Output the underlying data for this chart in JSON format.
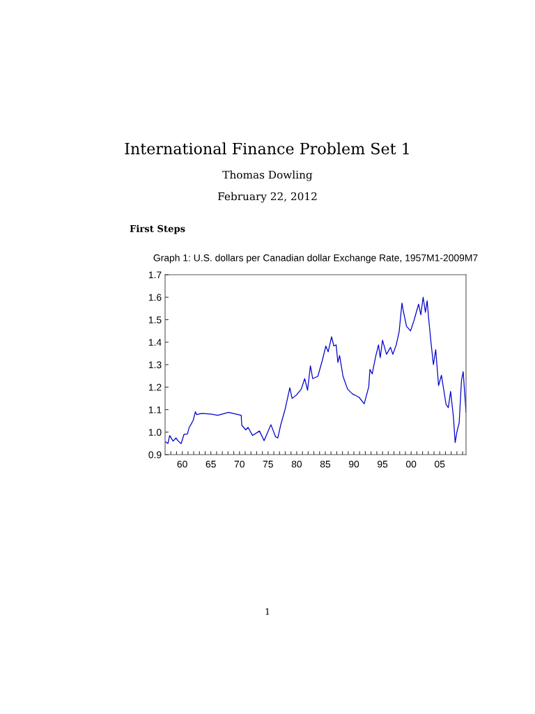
{
  "chart_data": {
    "type": "line",
    "title": "Graph 1: U.S. dollars per Canadian dollar Exchange Rate, 1957M1-2009M7",
    "annotations": [
      "International Finance Problem Set 1",
      "Thomas Dowling",
      "February 22, 2012",
      "First Steps",
      "1"
    ],
    "x": [
      1957.0,
      1957.5,
      1957.8,
      1958.4,
      1958.9,
      1959.3,
      1959.8,
      1960.3,
      1960.9,
      1961.2,
      1961.5,
      1961.9,
      1962.3,
      1962.5,
      1963.4,
      1965.0,
      1966.2,
      1968.1,
      1970.3,
      1970.4,
      1971.1,
      1971.5,
      1972.3,
      1973.5,
      1974.3,
      1975.5,
      1976.3,
      1976.7,
      1977.2,
      1978.0,
      1978.8,
      1979.2,
      1980.0,
      1980.8,
      1981.4,
      1981.9,
      1982.4,
      1982.8,
      1983.7,
      1984.5,
      1985.1,
      1985.5,
      1986.1,
      1986.5,
      1986.9,
      1987.2,
      1987.5,
      1988.1,
      1988.9,
      1989.7,
      1990.9,
      1991.8,
      1992.6,
      1992.8,
      1993.2,
      1993.8,
      1994.3,
      1994.6,
      1995.0,
      1995.7,
      1996.4,
      1996.8,
      1997.4,
      1997.9,
      1998.4,
      1998.6,
      1999.2,
      1999.9,
      2000.5,
      2001.3,
      2001.7,
      2002.1,
      2002.5,
      2002.8,
      2003.1,
      2003.5,
      2003.9,
      2004.3,
      2004.8,
      2005.3,
      2006.1,
      2006.5,
      2006.9,
      2007.4,
      2007.7,
      2008.0,
      2008.4,
      2008.8,
      2009.1,
      2009.4,
      2009.6
    ],
    "series": [
      {
        "color": "#0000cc",
        "values": [
          0.957,
          0.95,
          0.985,
          0.96,
          0.974,
          0.96,
          0.949,
          0.99,
          0.992,
          1.02,
          1.033,
          1.052,
          1.091,
          1.078,
          1.083,
          1.08,
          1.075,
          1.088,
          1.075,
          1.031,
          1.01,
          1.021,
          0.985,
          1.005,
          0.962,
          1.033,
          0.98,
          0.974,
          1.031,
          1.104,
          1.197,
          1.15,
          1.166,
          1.191,
          1.238,
          1.186,
          1.295,
          1.238,
          1.248,
          1.321,
          1.383,
          1.357,
          1.424,
          1.383,
          1.388,
          1.31,
          1.341,
          1.248,
          1.191,
          1.171,
          1.155,
          1.126,
          1.202,
          1.279,
          1.259,
          1.336,
          1.388,
          1.331,
          1.409,
          1.346,
          1.377,
          1.346,
          1.388,
          1.445,
          1.574,
          1.543,
          1.471,
          1.45,
          1.496,
          1.569,
          1.522,
          1.6,
          1.533,
          1.584,
          1.496,
          1.393,
          1.3,
          1.367,
          1.207,
          1.253,
          1.124,
          1.109,
          1.181,
          1.067,
          0.954,
          1.0,
          1.042,
          1.228,
          1.269,
          1.16,
          1.088
        ]
      }
    ],
    "xlim": [
      1957.0,
      2009.6
    ],
    "xticks": [
      {
        "value": 1958,
        "label": null
      },
      {
        "value": 1959,
        "label": null
      },
      {
        "value": 1960,
        "label": "60"
      },
      {
        "value": 1961,
        "label": null
      },
      {
        "value": 1962,
        "label": null
      },
      {
        "value": 1963,
        "label": null
      },
      {
        "value": 1964,
        "label": null
      },
      {
        "value": 1965,
        "label": "65"
      },
      {
        "value": 1966,
        "label": null
      },
      {
        "value": 1967,
        "label": null
      },
      {
        "value": 1968,
        "label": null
      },
      {
        "value": 1969,
        "label": null
      },
      {
        "value": 1970,
        "label": "70"
      },
      {
        "value": 1971,
        "label": null
      },
      {
        "value": 1972,
        "label": null
      },
      {
        "value": 1973,
        "label": null
      },
      {
        "value": 1974,
        "label": null
      },
      {
        "value": 1975,
        "label": "75"
      },
      {
        "value": 1976,
        "label": null
      },
      {
        "value": 1977,
        "label": null
      },
      {
        "value": 1978,
        "label": null
      },
      {
        "value": 1979,
        "label": null
      },
      {
        "value": 1980,
        "label": "80"
      },
      {
        "value": 1981,
        "label": null
      },
      {
        "value": 1982,
        "label": null
      },
      {
        "value": 1983,
        "label": null
      },
      {
        "value": 1984,
        "label": null
      },
      {
        "value": 1985,
        "label": "85"
      },
      {
        "value": 1986,
        "label": null
      },
      {
        "value": 1987,
        "label": null
      },
      {
        "value": 1988,
        "label": null
      },
      {
        "value": 1989,
        "label": null
      },
      {
        "value": 1990,
        "label": "90"
      },
      {
        "value": 1991,
        "label": null
      },
      {
        "value": 1992,
        "label": null
      },
      {
        "value": 1993,
        "label": null
      },
      {
        "value": 1994,
        "label": null
      },
      {
        "value": 1995,
        "label": "95"
      },
      {
        "value": 1996,
        "label": null
      },
      {
        "value": 1997,
        "label": null
      },
      {
        "value": 1998,
        "label": null
      },
      {
        "value": 1999,
        "label": null
      },
      {
        "value": 2000,
        "label": "00"
      },
      {
        "value": 2001,
        "label": null
      },
      {
        "value": 2002,
        "label": null
      },
      {
        "value": 2003,
        "label": null
      },
      {
        "value": 2004,
        "label": null
      },
      {
        "value": 2005,
        "label": "05"
      },
      {
        "value": 2006,
        "label": null
      },
      {
        "value": 2007,
        "label": null
      },
      {
        "value": 2008,
        "label": null
      },
      {
        "value": 2009,
        "label": null
      }
    ],
    "ylim": [
      0.9,
      1.7
    ],
    "yticks": [
      0.9,
      {
        "value": 1.0,
        "label": "1.0"
      },
      1.1,
      1.2,
      1.3,
      1.4,
      1.5,
      1.6,
      1.7
    ],
    "grid": false,
    "legend": false,
    "marker": "none",
    "line_style": "solid"
  }
}
